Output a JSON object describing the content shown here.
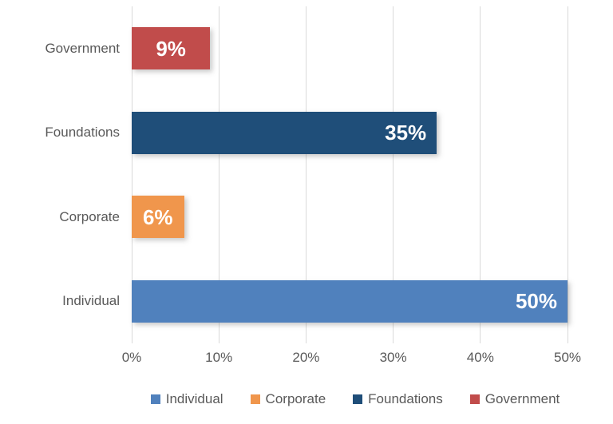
{
  "chart_data": {
    "type": "bar",
    "orientation": "horizontal",
    "title": "",
    "xlabel": "",
    "ylabel": "",
    "xlim": [
      0,
      50
    ],
    "grid": true,
    "gridline_color": "#d9d9d9",
    "text_color": "#595959",
    "x_ticks": [
      {
        "value": 0,
        "label": "0%"
      },
      {
        "value": 10,
        "label": "10%"
      },
      {
        "value": 20,
        "label": "20%"
      },
      {
        "value": 30,
        "label": "30%"
      },
      {
        "value": 40,
        "label": "40%"
      },
      {
        "value": 50,
        "label": "50%"
      }
    ],
    "bars_top_to_bottom": [
      {
        "category": "Government",
        "value": 9,
        "label": "9%",
        "color": "#c14c4b",
        "label_align": "center"
      },
      {
        "category": "Foundations",
        "value": 35,
        "label": "35%",
        "color": "#1f4e79",
        "label_align": "end"
      },
      {
        "category": "Corporate",
        "value": 6,
        "label": "6%",
        "color": "#f0964c",
        "label_align": "center"
      },
      {
        "category": "Individual",
        "value": 50,
        "label": "50%",
        "color": "#5081bd",
        "label_align": "end"
      }
    ],
    "legend_position": "bottom",
    "legend": [
      {
        "label": "Individual",
        "color": "#5081bd"
      },
      {
        "label": "Corporate",
        "color": "#f0964c"
      },
      {
        "label": "Foundations",
        "color": "#1f4e79"
      },
      {
        "label": "Government",
        "color": "#c14c4b"
      }
    ]
  }
}
